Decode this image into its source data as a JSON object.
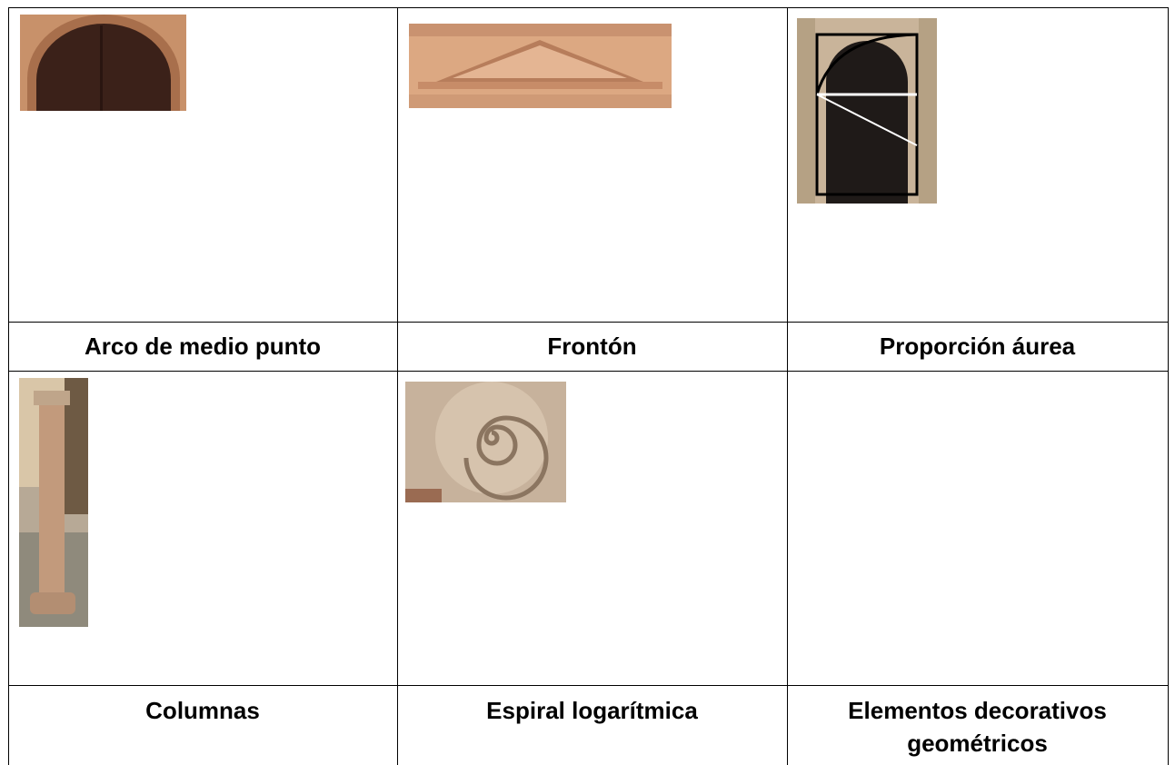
{
  "table": {
    "rows": [
      [
        "Arco de medio punto",
        "Frontón",
        "Proporción áurea"
      ],
      [
        "Columnas",
        "Espiral logarítmica",
        "Elementos decorativos geométricos"
      ]
    ]
  }
}
